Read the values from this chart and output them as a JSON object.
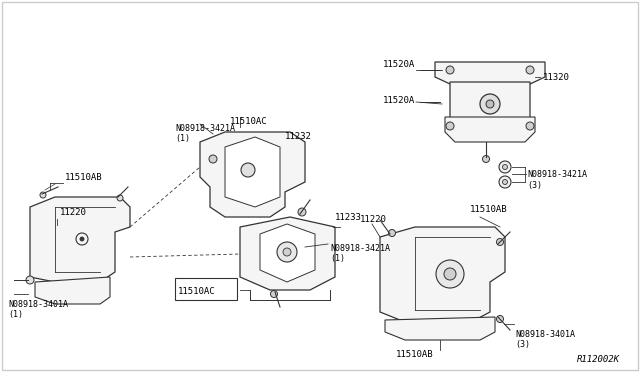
{
  "title": "",
  "background_color": "#ffffff",
  "border_color": "#cccccc",
  "line_color": "#333333",
  "text_color": "#000000",
  "ref_code": "R112002K",
  "parts": {
    "part_11220": "11220",
    "part_11510AB": "11510AB",
    "part_11510AC": "11510AC",
    "part_11232": "11232",
    "part_11233": "11233",
    "part_11320": "11320",
    "part_11520A_top": "11520A",
    "part_11520A_bot": "11520A",
    "part_08918_3421A_1a": "N08918-3421A\n(1)",
    "part_08918_3421A_1b": "N08918-3421A\n(1)",
    "part_08918_3421A_3a": "N08918-3421A\n(3)",
    "part_08918_3401A_1": "N08918-3401A\n(1)",
    "part_08918_3401A_3": "N08918-3401A\n(3)"
  }
}
